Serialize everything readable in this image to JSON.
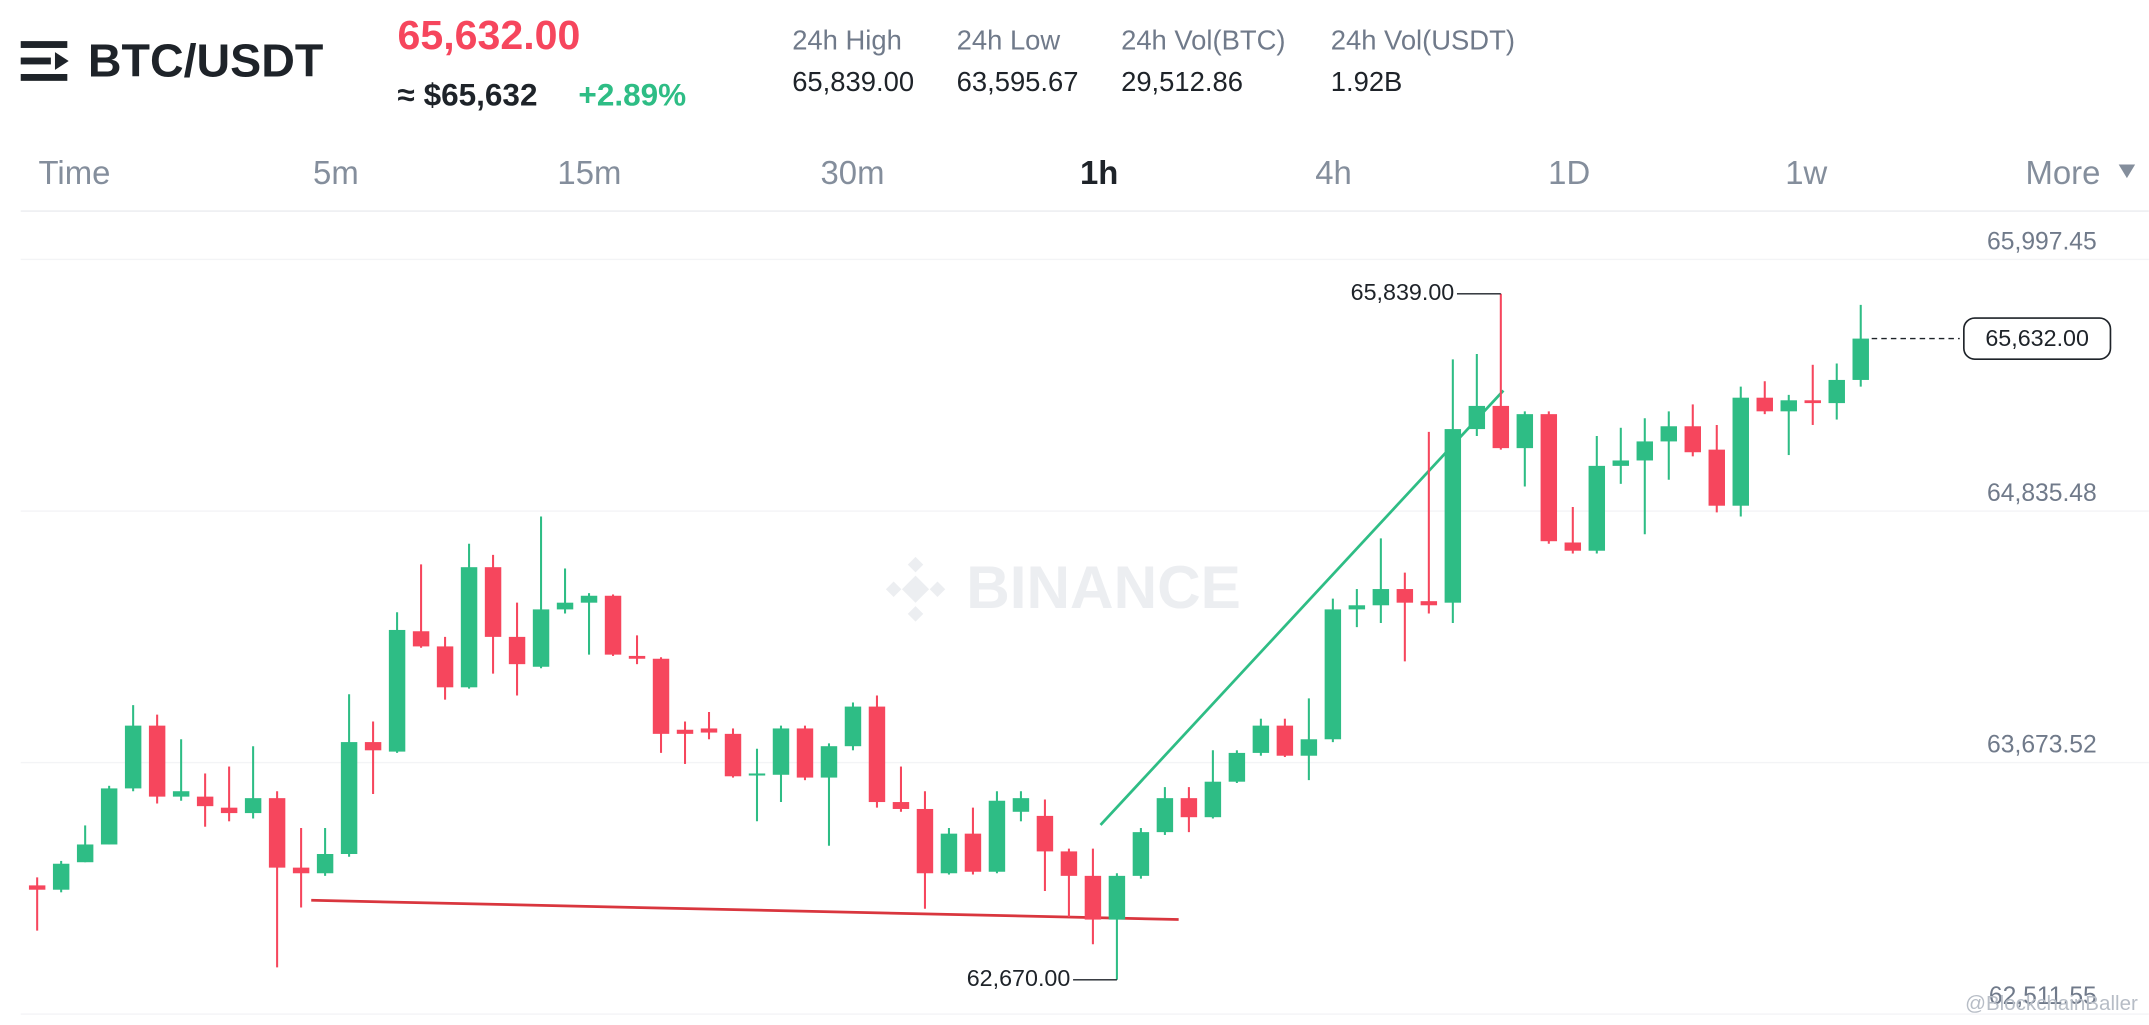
{
  "header": {
    "symbol": "BTC/USDT",
    "price": "65,632.00",
    "usd_price": "≈ $65,632",
    "change": "+2.89%",
    "stats": [
      {
        "label": "24h High",
        "value": "65,839.00"
      },
      {
        "label": "24h Low",
        "value": "63,595.67"
      },
      {
        "label": "24h Vol(BTC)",
        "value": "29,512.86"
      },
      {
        "label": "24h Vol(USDT)",
        "value": "1.92B"
      }
    ]
  },
  "tabs": [
    "Time",
    "5m",
    "15m",
    "30m",
    "1h",
    "4h",
    "1D",
    "1w",
    "More"
  ],
  "selected_tab": "1h",
  "chart_data": {
    "type": "candlestick",
    "watermark": "BINANCE",
    "credit": "@BlockchainBaller",
    "up_color": "#2ebd85",
    "down_color": "#f6465d",
    "grid": true,
    "ylim": [
      62480,
      66215
    ],
    "yticks": [
      {
        "value": 65997.45,
        "label": "65,997.45"
      },
      {
        "value": 64835.48,
        "label": "64,835.48"
      },
      {
        "value": 63673.52,
        "label": "63,673.52"
      },
      {
        "value": 62511.55,
        "label": "62,511.55"
      }
    ],
    "annotations": [
      {
        "value": 65839,
        "label": "65,839.00"
      },
      {
        "value": 62670,
        "label": "62,670.00"
      }
    ],
    "last_price": {
      "value": 65632,
      "label": "65,632.00"
    },
    "open": [
      63106,
      63086,
      63213,
      63295,
      63554,
      63844,
      63516,
      63516,
      63465,
      63440,
      63509,
      63188,
      63162,
      63251,
      63768,
      63724,
      64280,
      64210,
      64021,
      64576,
      64254,
      64116,
      64381,
      64412,
      64444,
      64166,
      64153,
      63825,
      63831,
      63806,
      63617,
      63617,
      63831,
      63604,
      63749,
      63932,
      63491,
      63459,
      63162,
      63345,
      63169,
      63446,
      63427,
      63263,
      63150,
      62948,
      63150,
      63352,
      63509,
      63421,
      63585,
      63718,
      63844,
      63705,
      63781,
      64381,
      64400,
      64475,
      64419,
      64412,
      65214,
      65321,
      65126,
      65283,
      64690,
      64652,
      65044,
      65069,
      65157,
      65227,
      65119,
      64860,
      65359,
      65296,
      65347,
      65334,
      65441
    ],
    "high": [
      63143,
      63219,
      63383,
      63566,
      63939,
      63895,
      63781,
      63623,
      63655,
      63749,
      63541,
      63371,
      63371,
      63989,
      63863,
      64368,
      64589,
      64254,
      64684,
      64633,
      64412,
      64810,
      64570,
      64456,
      64450,
      64261,
      64160,
      63863,
      63907,
      63831,
      63737,
      63844,
      63844,
      63762,
      63951,
      63983,
      63655,
      63541,
      63371,
      63465,
      63541,
      63541,
      63503,
      63276,
      63276,
      63162,
      63371,
      63560,
      63560,
      63730,
      63730,
      63876,
      63876,
      63970,
      64431,
      64475,
      64709,
      64551,
      65201,
      65536,
      65561,
      65839,
      65296,
      65296,
      64854,
      65182,
      65220,
      65264,
      65296,
      65328,
      65233,
      65410,
      65435,
      65372,
      65511,
      65517,
      65788
    ],
    "low": [
      62897,
      63074,
      63213,
      63295,
      63541,
      63484,
      63497,
      63377,
      63402,
      63415,
      62727,
      63004,
      63150,
      63238,
      63528,
      63718,
      64204,
      63964,
      64015,
      64084,
      63983,
      64109,
      64362,
      64172,
      64166,
      64128,
      63718,
      63667,
      63781,
      63604,
      63402,
      63491,
      63592,
      63289,
      63730,
      63465,
      63446,
      62998,
      63156,
      63156,
      63162,
      63402,
      63080,
      62960,
      62834,
      62670,
      63137,
      63339,
      63352,
      63415,
      63579,
      63705,
      63699,
      63592,
      63768,
      64299,
      64318,
      64141,
      64362,
      64318,
      65182,
      65119,
      64949,
      64684,
      64639,
      64639,
      64961,
      64728,
      64980,
      65088,
      64829,
      64810,
      65283,
      65094,
      65233,
      65258,
      65410
    ],
    "close": [
      63086,
      63206,
      63295,
      63554,
      63844,
      63516,
      63541,
      63472,
      63440,
      63509,
      63188,
      63162,
      63251,
      63768,
      63730,
      64286,
      64210,
      64021,
      64576,
      64254,
      64128,
      64381,
      64412,
      64444,
      64172,
      64153,
      63806,
      63806,
      63812,
      63610,
      63623,
      63831,
      63604,
      63749,
      63932,
      63491,
      63459,
      63162,
      63345,
      63169,
      63497,
      63509,
      63263,
      63150,
      62948,
      63150,
      63352,
      63509,
      63421,
      63585,
      63718,
      63844,
      63705,
      63781,
      64381,
      64400,
      64475,
      64412,
      64400,
      65214,
      65321,
      65126,
      65283,
      64696,
      64652,
      65044,
      65069,
      65157,
      65227,
      65107,
      64860,
      65359,
      65296,
      65347,
      65334,
      65441,
      65632
    ]
  }
}
